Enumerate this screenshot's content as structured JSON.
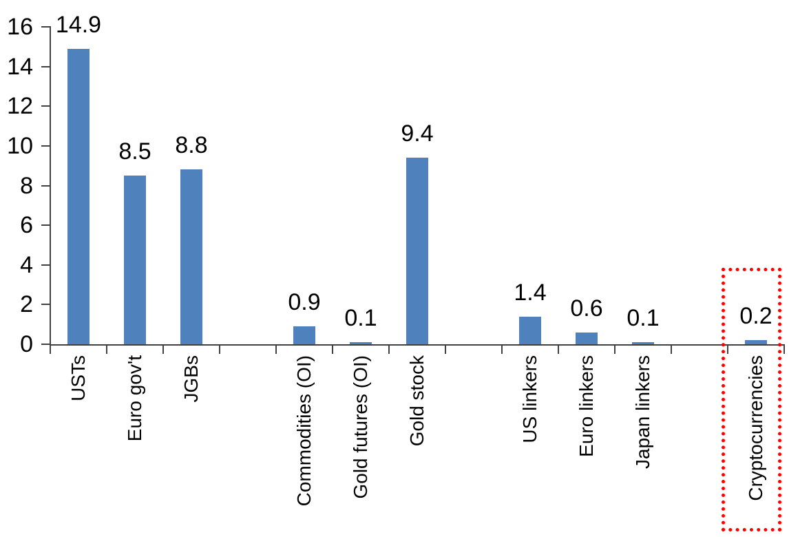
{
  "chart_data": {
    "type": "bar",
    "title": "",
    "xlabel": "",
    "ylabel": "",
    "categories": [
      "USTs",
      "Euro gov't",
      "JGBs",
      "Commodities (OI)",
      "Gold futures (OI)",
      "Gold stock",
      "US linkers",
      "Euro linkers",
      "Japan linkers",
      "Cryptocurrencies"
    ],
    "values": [
      14.9,
      8.5,
      8.8,
      0.9,
      0.1,
      9.4,
      1.4,
      0.6,
      0.1,
      0.2
    ],
    "value_labels": [
      "14.9",
      "8.5",
      "8.8",
      "0.9",
      "0.1",
      "9.4",
      "1.4",
      "0.6",
      "0.1",
      "0.2"
    ],
    "slot_indices": [
      0,
      1,
      2,
      4,
      5,
      6,
      8,
      9,
      10,
      12
    ],
    "num_slots": 13,
    "ylim": [
      0,
      16
    ],
    "ytick_step": 2,
    "ytick_labels": [
      "0",
      "2",
      "4",
      "6",
      "8",
      "10",
      "12",
      "14",
      "16"
    ],
    "grid": false,
    "legend": false,
    "bar_color": "#4f81bd",
    "axis_color": "#404040",
    "label_color": "#000000",
    "highlight": {
      "category": "Cryptocurrencies",
      "shape": "dotted-rectangle",
      "color": "#ff0000"
    }
  }
}
